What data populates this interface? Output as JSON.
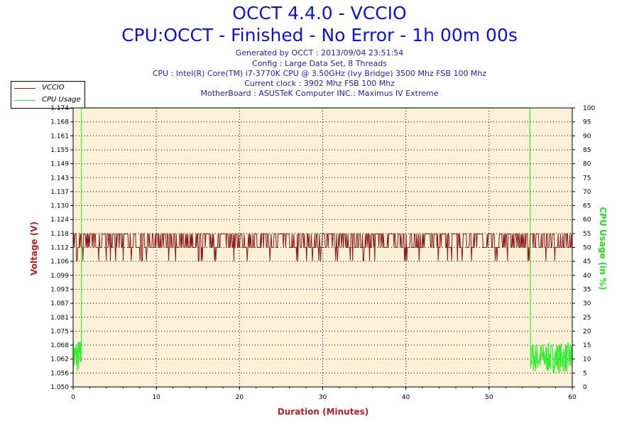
{
  "header": {
    "title": "OCCT 4.4.0 - VCCIO",
    "subtitle": "CPU:OCCT - Finished - No Error - 1h 00m 00s",
    "info_lines": [
      "Generated by OCCT : 2013/09/04 23:51:54",
      "Config : Large Data Set, 8 Threads",
      "CPU : Intel(R) Core(TM) i7-3770K CPU @ 3.50GHz (Ivy Bridge) 3500 Mhz FSB 100 Mhz",
      "Current clock : 3902 Mhz FSB 100 Mhz",
      "MotherBoard : ASUSTeK Computer INC.: Maximus IV Extreme"
    ]
  },
  "legend": {
    "placement": "top-left",
    "items": [
      {
        "label": "VCCIO",
        "color": "#8b1a1a"
      },
      {
        "label": "CPU Usage",
        "color": "#33ee33"
      }
    ]
  },
  "chart_data": {
    "type": "line",
    "xlabel": "Duration (Minutes)",
    "ylabel_left": "Voltage (V)",
    "ylabel_right": "CPU Usage (in %)",
    "xlim": [
      0,
      60
    ],
    "ylim_left": [
      1.05,
      1.174
    ],
    "ylim_right": [
      0,
      100
    ],
    "x_ticks": [
      "0",
      "10",
      "20",
      "30",
      "40",
      "50",
      "60"
    ],
    "y_ticks_left": [
      "1.050",
      "1.056",
      "1.062",
      "1.068",
      "1.075",
      "1.081",
      "1.087",
      "1.093",
      "1.099",
      "1.106",
      "1.112",
      "1.118",
      "1.124",
      "1.130",
      "1.137",
      "1.143",
      "1.149",
      "1.155",
      "1.161",
      "1.168",
      "1.174"
    ],
    "y_ticks_right": [
      "0",
      "5",
      "10",
      "15",
      "20",
      "25",
      "30",
      "35",
      "40",
      "45",
      "50",
      "55",
      "60",
      "65",
      "70",
      "75",
      "80",
      "85",
      "90",
      "95",
      "100"
    ],
    "grid": true,
    "plot_background": "#fdf0d8",
    "series": [
      {
        "name": "VCCIO",
        "axis": "left",
        "color": "#8b1a1a",
        "baseline": 1.112,
        "high": 1.118,
        "low": 1.106,
        "points": [
          [
            0,
            1.106
          ],
          [
            0.2,
            1.112
          ],
          [
            0.4,
            1.106
          ],
          [
            0.6,
            1.118
          ],
          [
            1,
            1.112
          ],
          [
            5,
            1.112
          ],
          [
            10,
            1.112
          ],
          [
            15,
            1.112
          ],
          [
            20,
            1.112
          ],
          [
            25,
            1.112
          ],
          [
            30,
            1.112
          ],
          [
            35,
            1.112
          ],
          [
            40,
            1.112
          ],
          [
            45,
            1.112
          ],
          [
            50,
            1.112
          ],
          [
            54,
            1.112
          ],
          [
            55,
            1.118
          ],
          [
            56,
            1.106
          ],
          [
            58,
            1.112
          ],
          [
            59.5,
            1.106
          ],
          [
            60,
            1.112
          ]
        ]
      },
      {
        "name": "CPU Usage",
        "axis": "right",
        "color": "#33ee33",
        "points": [
          [
            0,
            5
          ],
          [
            0.2,
            14
          ],
          [
            0.4,
            8
          ],
          [
            0.6,
            12
          ],
          [
            0.8,
            6
          ],
          [
            1.0,
            100
          ],
          [
            54.9,
            100
          ],
          [
            55.0,
            10
          ],
          [
            57,
            12
          ],
          [
            59,
            9
          ],
          [
            60,
            11
          ]
        ]
      }
    ]
  }
}
